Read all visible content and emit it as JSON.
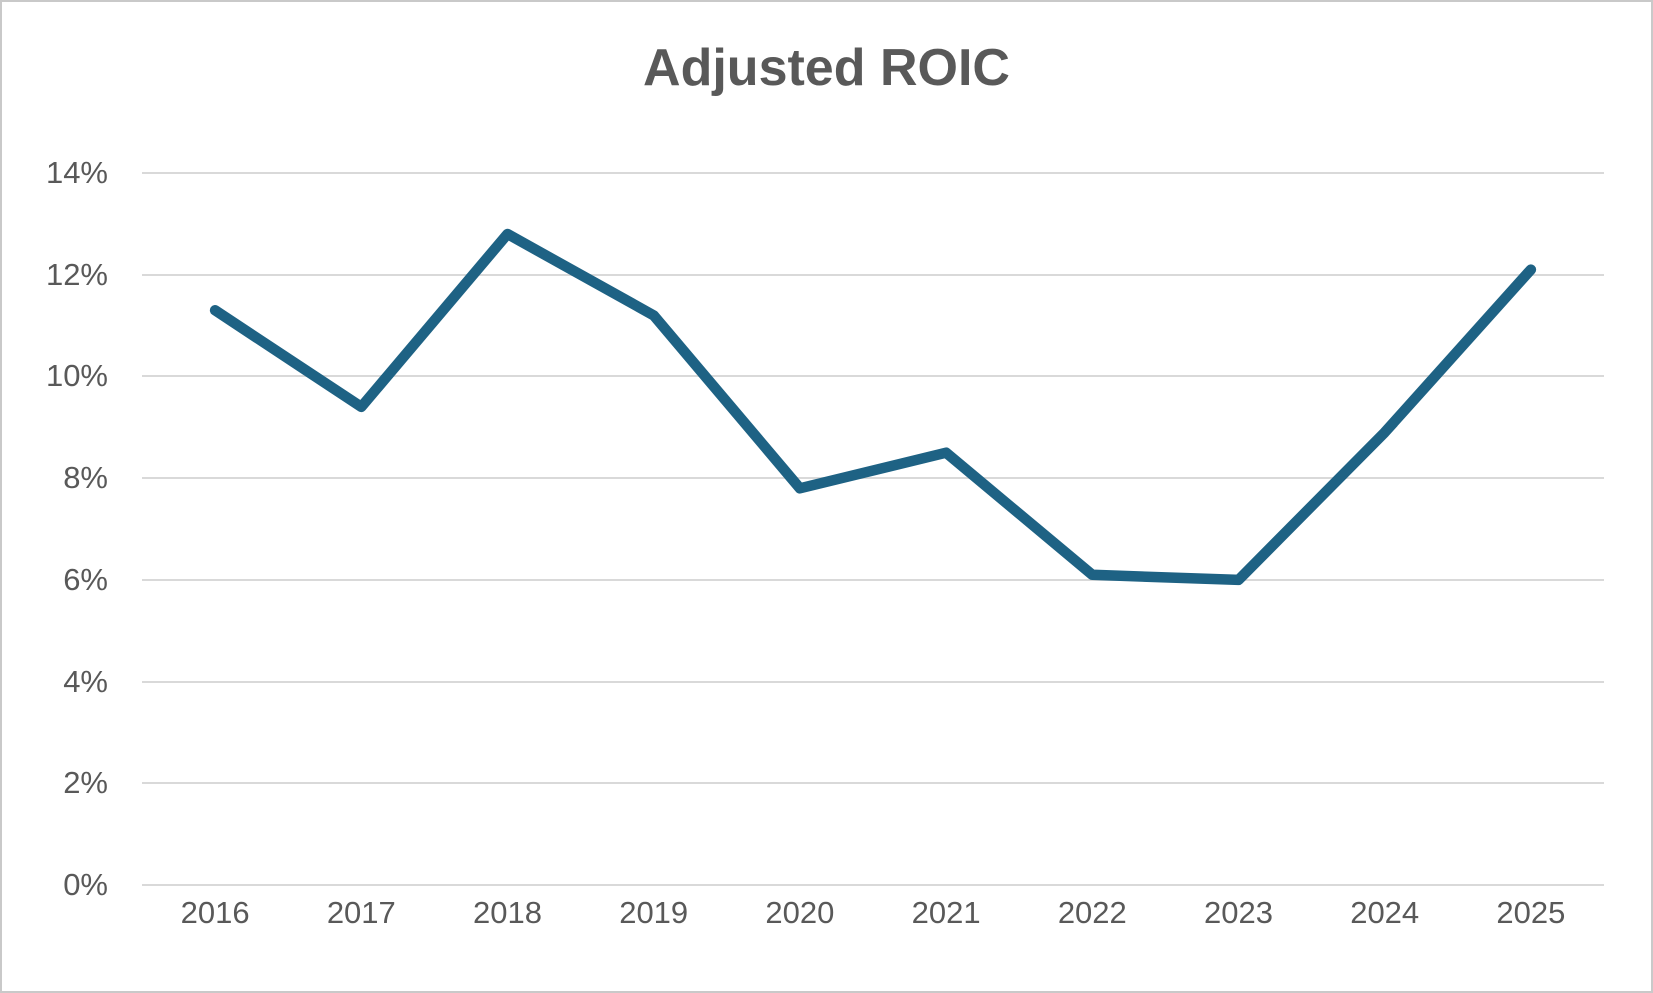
{
  "chart_data": {
    "type": "line",
    "title": "Adjusted ROIC",
    "categories": [
      "2016",
      "2017",
      "2018",
      "2019",
      "2020",
      "2021",
      "2022",
      "2023",
      "2024",
      "2025"
    ],
    "series": [
      {
        "name": "Adjusted ROIC",
        "values": [
          11.3,
          9.4,
          12.8,
          11.2,
          7.8,
          8.5,
          6.1,
          6.0,
          8.9,
          12.1
        ]
      }
    ],
    "xlabel": "",
    "ylabel": "",
    "ylim": [
      0,
      14
    ],
    "y_ticks": [
      0,
      2,
      4,
      6,
      8,
      10,
      12,
      14
    ],
    "y_tick_labels": [
      "0%",
      "2%",
      "4%",
      "6%",
      "8%",
      "10%",
      "12%",
      "14%"
    ],
    "grid": "horizontal",
    "legend": "none",
    "colors": {
      "line": "#1e6284",
      "gridline": "#d9d9d9",
      "text": "#595959",
      "background": "#ffffff",
      "border": "#c9c9c9"
    }
  }
}
